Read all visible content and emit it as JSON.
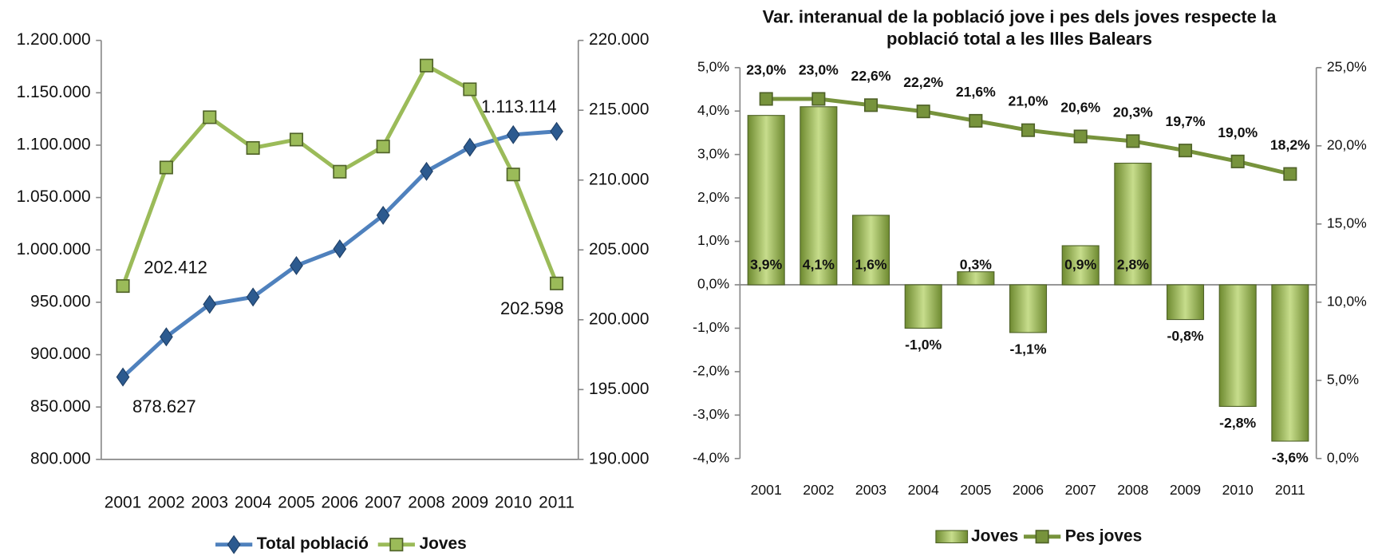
{
  "chart_data": [
    {
      "type": "line",
      "categories": [
        "2001",
        "2002",
        "2003",
        "2004",
        "2005",
        "2006",
        "2007",
        "2008",
        "2009",
        "2010",
        "2011"
      ],
      "series": [
        {
          "name": "Total població",
          "color": "#4f81bd",
          "values": [
            878627,
            917000,
            948000,
            955000,
            985000,
            1001000,
            1033000,
            1075000,
            1098000,
            1110000,
            1113114
          ],
          "value_labels": [
            "878.627",
            null,
            null,
            null,
            null,
            null,
            null,
            null,
            null,
            null,
            "1.113.114"
          ]
        },
        {
          "name": "Joves",
          "color": "#9bbb59",
          "axis": "y2",
          "values": [
            202412,
            210900,
            214500,
            212300,
            212900,
            210600,
            212400,
            218200,
            216500,
            210400,
            202598
          ],
          "value_labels": [
            "202.412",
            null,
            null,
            null,
            null,
            null,
            null,
            null,
            null,
            null,
            "202.598"
          ]
        }
      ],
      "ylim": [
        800000,
        1200000
      ],
      "yticks": [
        {
          "value": 800000,
          "label": "800.000"
        },
        {
          "value": 850000,
          "label": "850.000"
        },
        {
          "value": 900000,
          "label": "900.000"
        },
        {
          "value": 950000,
          "label": "950.000"
        },
        {
          "value": 1000000,
          "label": "1.000.000"
        },
        {
          "value": 1050000,
          "label": "1.050.000"
        },
        {
          "value": 1100000,
          "label": "1.100.000"
        },
        {
          "value": 1150000,
          "label": "1.150.000"
        },
        {
          "value": 1200000,
          "label": "1.200.000"
        }
      ],
      "y2lim": [
        190000,
        220000
      ],
      "y2ticks": [
        {
          "value": 190000,
          "label": "190.000"
        },
        {
          "value": 195000,
          "label": "195.000"
        },
        {
          "value": 200000,
          "label": "200.000"
        },
        {
          "value": 205000,
          "label": "205.000"
        },
        {
          "value": 210000,
          "label": "210.000"
        },
        {
          "value": 215000,
          "label": "215.000"
        },
        {
          "value": 220000,
          "label": "220.000"
        }
      ],
      "legend": "bottom"
    },
    {
      "type": "bar",
      "title": "Var. interanual de la població jove i pes dels joves respecte la població total a les Illes Balears",
      "categories": [
        "2001",
        "2002",
        "2003",
        "2004",
        "2005",
        "2006",
        "2007",
        "2008",
        "2009",
        "2010",
        "2011"
      ],
      "series": [
        {
          "name": "Joves",
          "type": "bar",
          "color": "#9bbb59",
          "values": [
            3.9,
            4.1,
            1.6,
            -1.0,
            0.3,
            -1.1,
            0.9,
            2.8,
            -0.8,
            -2.8,
            -3.6
          ],
          "value_labels": [
            "3,9%",
            "4,1%",
            "1,6%",
            "-1,0%",
            "0,3%",
            "-1,1%",
            "0,9%",
            "2,8%",
            "-0,8%",
            "-2,8%",
            "-3,6%"
          ]
        },
        {
          "name": "Pes joves",
          "type": "line",
          "color": "#77933c",
          "axis": "y2",
          "values": [
            23.0,
            23.0,
            22.6,
            22.2,
            21.6,
            21.0,
            20.6,
            20.3,
            19.7,
            19.0,
            18.2
          ],
          "value_labels": [
            "23,0%",
            "23,0%",
            "22,6%",
            "22,2%",
            "21,6%",
            "21,0%",
            "20,6%",
            "20,3%",
            "19,7%",
            "19,0%",
            "18,2%"
          ]
        }
      ],
      "ylim": [
        -4,
        5
      ],
      "yticks": [
        {
          "value": -4,
          "label": "-4,0%"
        },
        {
          "value": -3,
          "label": "-3,0%"
        },
        {
          "value": -2,
          "label": "-2,0%"
        },
        {
          "value": -1,
          "label": "-1,0%"
        },
        {
          "value": 0,
          "label": "0,0%"
        },
        {
          "value": 1,
          "label": "1,0%"
        },
        {
          "value": 2,
          "label": "2,0%"
        },
        {
          "value": 3,
          "label": "3,0%"
        },
        {
          "value": 4,
          "label": "4,0%"
        },
        {
          "value": 5,
          "label": "5,0%"
        }
      ],
      "y2lim": [
        0,
        25
      ],
      "y2ticks": [
        {
          "value": 0,
          "label": "0,0%"
        },
        {
          "value": 5,
          "label": "5,0%"
        },
        {
          "value": 10,
          "label": "10,0%"
        },
        {
          "value": 15,
          "label": "15,0%"
        },
        {
          "value": 20,
          "label": "20,0%"
        },
        {
          "value": 25,
          "label": "25,0%"
        }
      ],
      "legend": "bottom"
    }
  ]
}
